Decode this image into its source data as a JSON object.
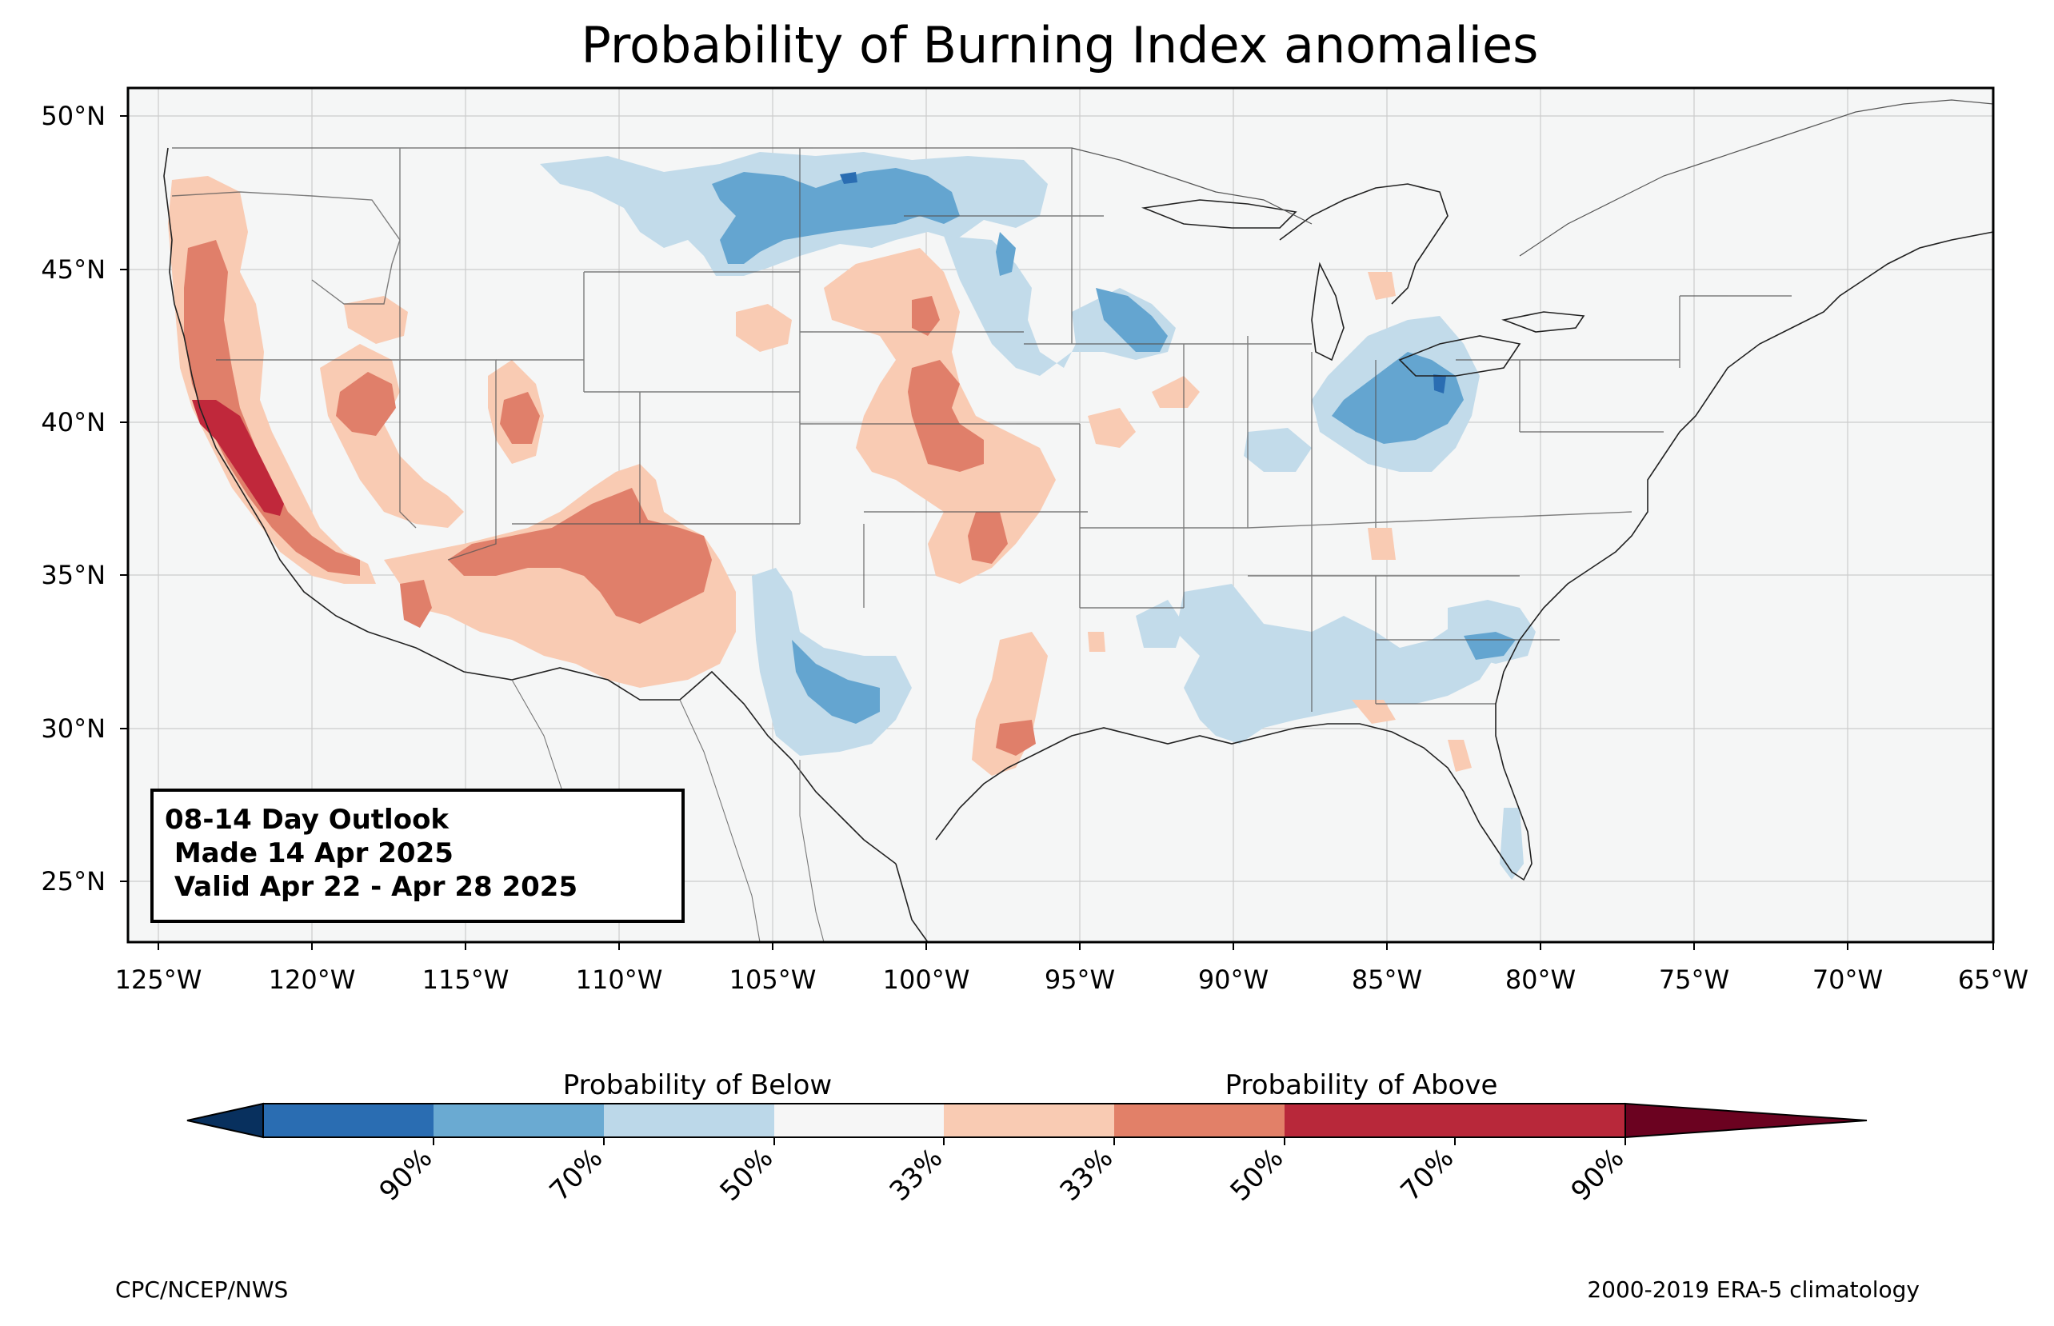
{
  "title": "Probability of Burning Index anomalies",
  "info_box": {
    "line1": "08-14 Day Outlook",
    "line2": " Made 14 Apr 2025",
    "line3": " Valid Apr 22 - Apr 28 2025"
  },
  "lat_labels": [
    "50°N",
    "45°N",
    "40°N",
    "35°N",
    "30°N",
    "25°N"
  ],
  "lon_labels": [
    "125°W",
    "120°W",
    "115°W",
    "110°W",
    "105°W",
    "100°W",
    "95°W",
    "90°W",
    "85°W",
    "80°W",
    "75°W",
    "70°W",
    "65°W"
  ],
  "colorbar": {
    "below_label": "Probability of Below",
    "above_label": "Probability of Above",
    "ticks": [
      "90%",
      "70%",
      "50%",
      "33%",
      "33%",
      "50%",
      "70%",
      "90%"
    ],
    "colors": [
      "#053061",
      "#2166ac",
      "#4393c3",
      "#92c5de",
      "#f7f7f7",
      "#f4a582",
      "#d6604d",
      "#b2182b",
      "#67001f"
    ],
    "bin_fills": [
      "#08305e",
      "#2a6db2",
      "#6aaad2",
      "#bcd8e9",
      "#f6f6f6",
      "#f9cbb3",
      "#e28068",
      "#b8283a",
      "#6b0220"
    ]
  },
  "map_colors": {
    "background": "#f5f6f6",
    "below_33": "#c2dbea",
    "below_50": "#64a5d0",
    "below_70": "#2a6db2",
    "above_33": "#f9cbb3",
    "above_50": "#e07f6a",
    "above_70": "#c0283b"
  },
  "footer": {
    "left": "CPC/NCEP/NWS",
    "right": "2000-2019 ERA-5 climatology"
  }
}
